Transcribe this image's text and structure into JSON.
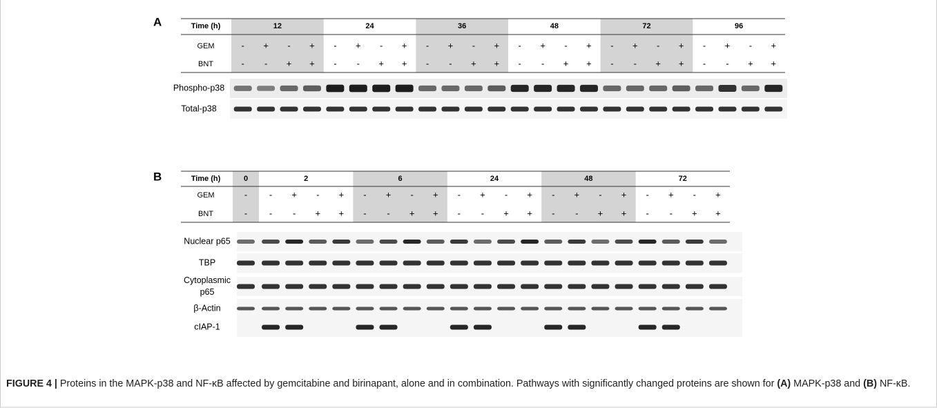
{
  "panel_a": {
    "label": "A",
    "row_labels": [
      "Time (h)",
      "GEM",
      "BNT"
    ],
    "groups": [
      {
        "time": "12",
        "shaded": true,
        "gem": [
          "-",
          "+",
          "-",
          "+"
        ],
        "bnt": [
          "-",
          "-",
          "+",
          "+"
        ]
      },
      {
        "time": "24",
        "shaded": false,
        "gem": [
          "-",
          "+",
          "-",
          "+"
        ],
        "bnt": [
          "-",
          "-",
          "+",
          "+"
        ]
      },
      {
        "time": "36",
        "shaded": true,
        "gem": [
          "-",
          "+",
          "-",
          "+"
        ],
        "bnt": [
          "-",
          "-",
          "+",
          "+"
        ]
      },
      {
        "time": "48",
        "shaded": false,
        "gem": [
          "-",
          "+",
          "-",
          "+"
        ],
        "bnt": [
          "-",
          "-",
          "+",
          "+"
        ]
      },
      {
        "time": "72",
        "shaded": true,
        "gem": [
          "-",
          "+",
          "-",
          "+"
        ],
        "bnt": [
          "-",
          "-",
          "+",
          "+"
        ]
      },
      {
        "time": "96",
        "shaded": false,
        "gem": [
          "-",
          "+",
          "-",
          "+"
        ],
        "bnt": [
          "-",
          "-",
          "+",
          "+"
        ]
      }
    ],
    "blot_labels": [
      [
        "Phospho-p38"
      ],
      [
        "Total-p38"
      ]
    ]
  },
  "panel_b": {
    "label": "B",
    "row_labels": [
      "Time (h)",
      "GEM",
      "BNT"
    ],
    "groups": [
      {
        "time": "0",
        "shaded": true,
        "gem": [
          "-"
        ],
        "bnt": [
          "-"
        ]
      },
      {
        "time": "2",
        "shaded": false,
        "gem": [
          "-",
          "+",
          "-",
          "+"
        ],
        "bnt": [
          "-",
          "-",
          "+",
          "+"
        ]
      },
      {
        "time": "6",
        "shaded": true,
        "gem": [
          "-",
          "+",
          "-",
          "+"
        ],
        "bnt": [
          "-",
          "-",
          "+",
          "+"
        ]
      },
      {
        "time": "24",
        "shaded": false,
        "gem": [
          "-",
          "+",
          "-",
          "+"
        ],
        "bnt": [
          "-",
          "-",
          "+",
          "+"
        ]
      },
      {
        "time": "48",
        "shaded": true,
        "gem": [
          "-",
          "+",
          "-",
          "+"
        ],
        "bnt": [
          "-",
          "-",
          "+",
          "+"
        ]
      },
      {
        "time": "72",
        "shaded": false,
        "gem": [
          "-",
          "+",
          "-",
          "+"
        ],
        "bnt": [
          "-",
          "-",
          "+",
          "+"
        ]
      }
    ],
    "blot_labels": [
      [
        "Nuclear p65"
      ],
      [
        "TBP"
      ],
      [
        "Cytoplasmic",
        "p65"
      ],
      [
        "β-Actin"
      ],
      [
        "cIAP-1"
      ]
    ]
  },
  "caption": {
    "label": "FIGURE 4 |",
    "text_1": " Proteins in the MAPK-p38 and NF-κB affected by gemcitabine and birinapant, alone and in combination. Pathways with significantly changed proteins are shown for ",
    "ref_a": "(A)",
    "text_2": " MAPK-p38 and ",
    "ref_b": "(B)",
    "text_3": " NF-κB."
  }
}
